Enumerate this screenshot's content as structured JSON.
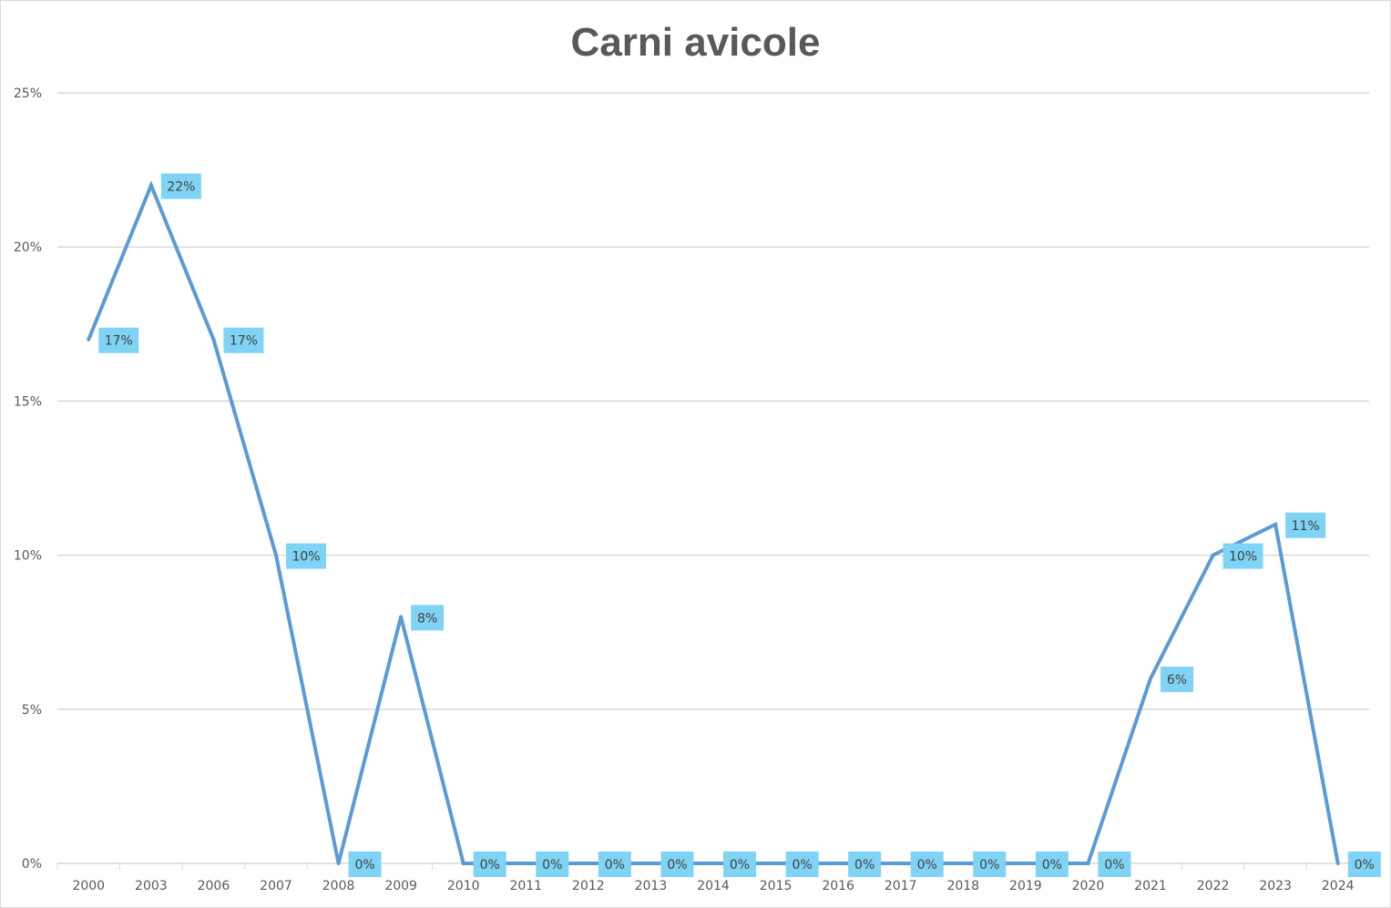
{
  "chart_data": {
    "type": "line",
    "title": "Carni avicole",
    "categories": [
      "2000",
      "2003",
      "2006",
      "2007",
      "2008",
      "2009",
      "2010",
      "2011",
      "2012",
      "2013",
      "2014",
      "2015",
      "2016",
      "2017",
      "2018",
      "2019",
      "2020",
      "2021",
      "2022",
      "2023",
      "2024"
    ],
    "values": [
      17,
      22,
      17,
      10,
      0,
      8,
      0,
      0,
      0,
      0,
      0,
      0,
      0,
      0,
      0,
      0,
      0,
      6,
      10,
      11,
      0
    ],
    "data_labels": [
      "17%",
      "22%",
      "17%",
      "10%",
      "0%",
      "8%",
      "0%",
      "0%",
      "0%",
      "0%",
      "0%",
      "0%",
      "0%",
      "0%",
      "0%",
      "0%",
      "0%",
      "6%",
      "10%",
      "11%",
      "0%"
    ],
    "y_ticks": [
      "0%",
      "5%",
      "10%",
      "15%",
      "20%",
      "25%"
    ],
    "ylim": [
      0,
      25
    ],
    "grid": true,
    "legend": "none",
    "colors": {
      "line": "#5b9bd5",
      "label_bg": "#7fd3f5",
      "grid": "#d9d9d9",
      "text": "#595959"
    }
  }
}
